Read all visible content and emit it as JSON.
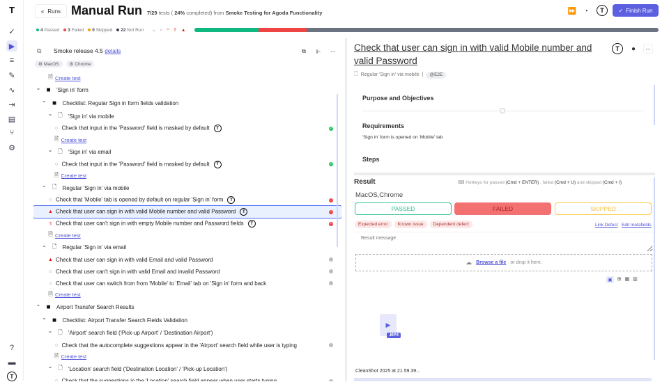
{
  "sidebar": {
    "icons": [
      "logo-icon",
      "check-icon",
      "play-icon",
      "list-check-icon",
      "pen-icon",
      "activity-icon",
      "import-icon",
      "chart-icon",
      "branch-icon",
      "gear-icon"
    ],
    "bottom_icons": [
      "help-icon",
      "folder-icon",
      "avatar-icon"
    ],
    "active": "play-icon"
  },
  "header": {
    "back_label": "Runs",
    "title": "Manual Run",
    "progress_text": "7/29",
    "tests_word": "tests (",
    "percent": "24%",
    "completed_word": "completed) from",
    "project": "Smoke Testing for Agoda Functionality",
    "finish_label": "Finish Run",
    "stats": {
      "passed": "4",
      "passed_label": "Passed",
      "failed": "3",
      "failed_label": "Failed",
      "skipped": "0",
      "skipped_label": "Skipped",
      "notrun": "22",
      "notrun_label": "Not Run"
    },
    "progress": {
      "passed_pct": 13.8,
      "failed_pct": 10.3,
      "colors": {
        "passed": "#10b981",
        "failed": "#ef4444",
        "notrun": "#6b7280"
      }
    }
  },
  "left": {
    "release": "Smoke release 4.5",
    "details_link": "details",
    "tags": [
      "MacOS",
      "Chrome"
    ],
    "rows": [
      {
        "type": "create",
        "indent": 2,
        "label": "Create test"
      },
      {
        "type": "folder",
        "indent": 0,
        "label": "'Sign in' form"
      },
      {
        "type": "folder",
        "indent": 1,
        "label": "Checklist: Regular Sign in form fields validation"
      },
      {
        "type": "suite",
        "indent": 2,
        "label": "'Sign in' via mobile"
      },
      {
        "type": "test",
        "indent": 3,
        "label": "Check that input in the 'Password' field is masked by default",
        "icon": "circle",
        "status": "passed",
        "avatar": true
      },
      {
        "type": "create",
        "indent": 3,
        "label": "Create test"
      },
      {
        "type": "suite",
        "indent": 2,
        "label": "'Sign in' via email"
      },
      {
        "type": "test",
        "indent": 3,
        "label": "Check that input in the 'Password' field is masked by default",
        "icon": "circle",
        "status": "passed",
        "avatar": true
      },
      {
        "type": "create",
        "indent": 3,
        "label": "Create test"
      },
      {
        "type": "suite",
        "indent": 1,
        "label": "Regular 'Sign in' via mobile"
      },
      {
        "type": "test",
        "indent": 2,
        "label": "Check that 'Mobile' tab is opened by default on regular 'Sign in' form",
        "icon": "circle",
        "status": "failed",
        "avatar": true
      },
      {
        "type": "test",
        "indent": 2,
        "label": "Check that user can sign in with valid Mobile number and valid Password",
        "icon": "critical",
        "status": "failed",
        "avatar": true,
        "selected": true
      },
      {
        "type": "test",
        "indent": 2,
        "label": "Check that user can't sign in with empty Mobile number and Password fields",
        "icon": "high",
        "status": "failed",
        "avatar": true
      },
      {
        "type": "create",
        "indent": 2,
        "label": "Create test"
      },
      {
        "type": "suite",
        "indent": 1,
        "label": "Regular 'Sign in' via email"
      },
      {
        "type": "test",
        "indent": 2,
        "label": "Check that user can sign in with valid Email and valid Password",
        "icon": "critical",
        "status": "notrun"
      },
      {
        "type": "test",
        "indent": 2,
        "label": "Check that user can't sign in with valid Email and invalid Password",
        "icon": "circle",
        "status": "notrun"
      },
      {
        "type": "test",
        "indent": 2,
        "label": "Check that user can switch from from 'Mobile' to 'Email' tab on 'Sign in' form and back",
        "icon": "circle",
        "status": "notrun"
      },
      {
        "type": "create",
        "indent": 2,
        "label": "Create test"
      },
      {
        "type": "folder",
        "indent": 0,
        "label": "Airport Transfer Search Results"
      },
      {
        "type": "folder",
        "indent": 1,
        "label": "Checklist: Airport Transfer Search Fields Validation"
      },
      {
        "type": "suite",
        "indent": 2,
        "label": "'Airport' search field ('Pick-up Airport' / 'Destination Airport')"
      },
      {
        "type": "test",
        "indent": 3,
        "label": "Check that the autocomplete suggestions appear in the 'Airport' search field while user is typing",
        "icon": "circle",
        "status": "notrun"
      },
      {
        "type": "create",
        "indent": 3,
        "label": "Create test"
      },
      {
        "type": "suite",
        "indent": 2,
        "label": "'Location' search field ('Destination Location' / 'Pick-up Location')"
      },
      {
        "type": "test",
        "indent": 3,
        "label": "Check that the suggestions in the 'Location' search field appear when user starts typing",
        "icon": "circle",
        "status": "notrun"
      }
    ]
  },
  "right": {
    "title": "Check that user can sign in with valid Mobile number and valid Password",
    "suite": "Regular 'Sign in' via mobile",
    "tag": "@E2E",
    "purpose": "Purpose and Objectives",
    "requirements": "Requirements",
    "requirements_text": "'Sign in' form is opened on 'Mobile' tab",
    "steps": "Steps",
    "result": {
      "heading": "Result",
      "hotkeys_a": "Hotkeys for passed",
      "hk_passed": "(Cmd + ENTER)",
      "hotkeys_b": ", failed",
      "hk_failed": "(Cmd + U)",
      "hotkeys_c": "and skipped",
      "hk_skipped": "(Cmd + I)",
      "env": "MacOS,Chrome",
      "passed": "PASSED",
      "failed": "FAILED",
      "skipped": "SKIPPED",
      "selected": "FAILED",
      "chips": [
        "Expected error",
        "Known issue",
        "Dependent defect"
      ],
      "link_defect": "Link Defect",
      "edit_meta": "Edit metafields",
      "message_placeholder": "Result message",
      "browse": "Browse a file",
      "drop": "or drop it here.",
      "file_ext": ".MP4",
      "file_name": "CleanShot 2025 at 21.59.39..."
    }
  }
}
